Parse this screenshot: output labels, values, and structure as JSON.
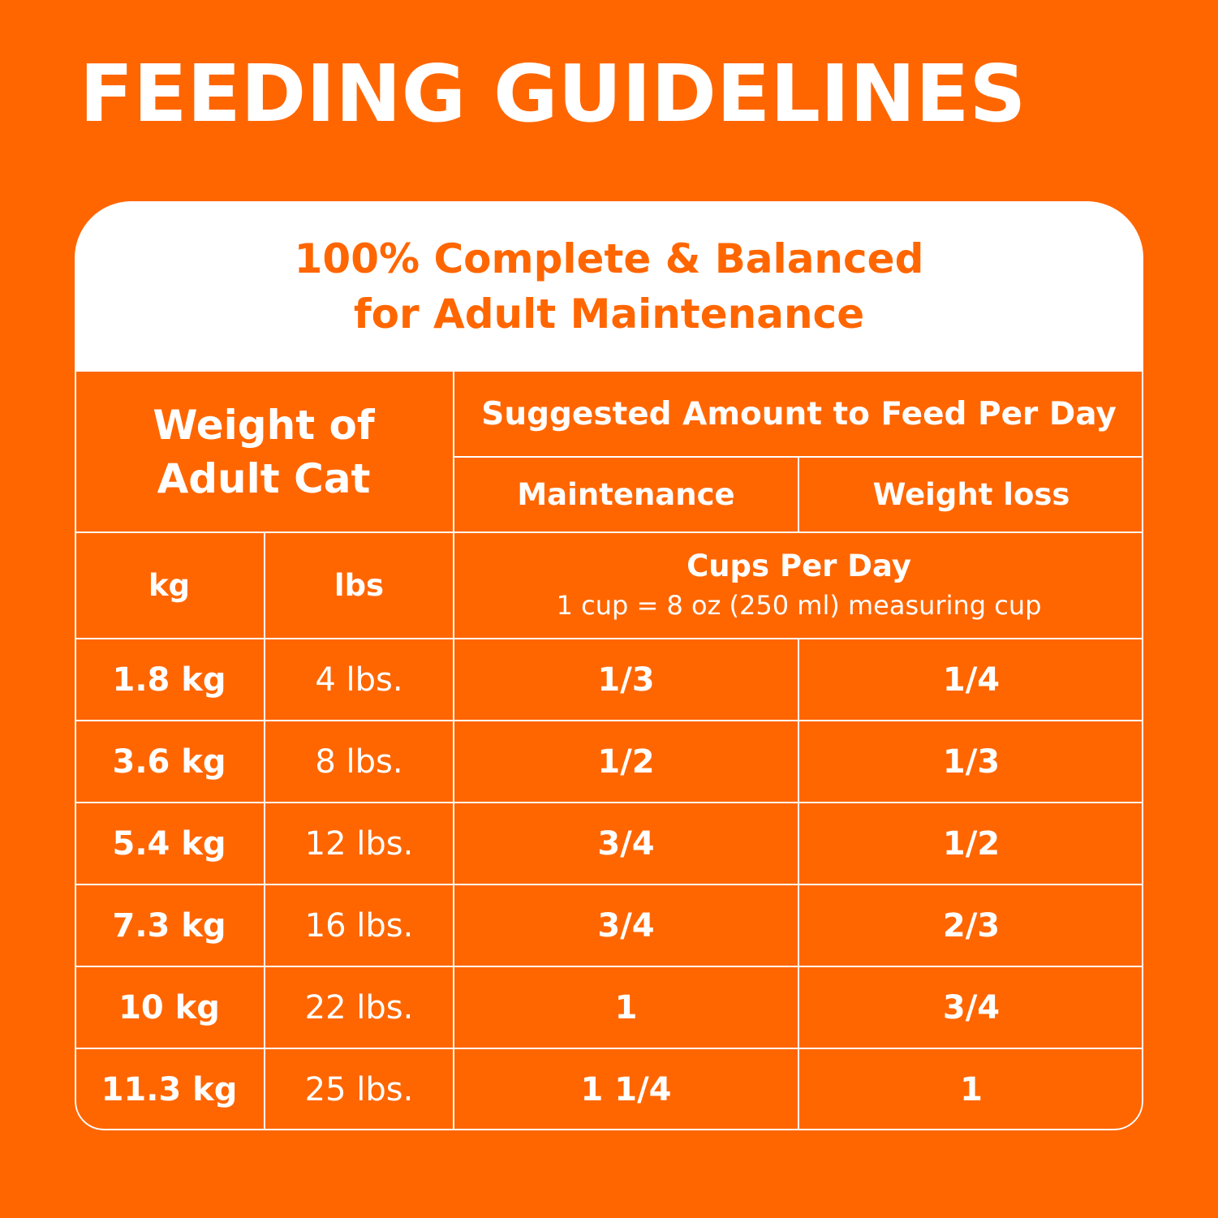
{
  "title": "FEEDING GUIDELINES",
  "card": {
    "header_line1": "100% Complete & Balanced",
    "header_line2": "for Adult Maintenance"
  },
  "table": {
    "weight_header_line1": "Weight of",
    "weight_header_line2": "Adult Cat",
    "suggested_header": "Suggested Amount to Feed Per Day",
    "maintenance_header": "Maintenance",
    "weight_loss_header": "Weight loss",
    "kg_header": "kg",
    "lbs_header": "lbs",
    "cups_header": "Cups Per Day",
    "cups_note": "1 cup = 8 oz (250 ml) measuring cup",
    "rows": [
      {
        "kg": "1.8 kg",
        "lbs": "4 lbs.",
        "maintenance": "1/3",
        "weight_loss": "1/4"
      },
      {
        "kg": "3.6 kg",
        "lbs": "8 lbs.",
        "maintenance": "1/2",
        "weight_loss": "1/3"
      },
      {
        "kg": "5.4 kg",
        "lbs": "12 lbs.",
        "maintenance": "3/4",
        "weight_loss": "1/2"
      },
      {
        "kg": "7.3 kg",
        "lbs": "16 lbs.",
        "maintenance": "3/4",
        "weight_loss": "2/3"
      },
      {
        "kg": "10 kg",
        "lbs": "22 lbs.",
        "maintenance": "1",
        "weight_loss": "3/4"
      },
      {
        "kg": "11.3 kg",
        "lbs": "25 lbs.",
        "maintenance": "1 1/4",
        "weight_loss": "1"
      }
    ]
  },
  "colors": {
    "background": "#FF6600",
    "text": "#FFFFFF",
    "header_band": "#FFFFFF",
    "header_text": "#FF6600"
  }
}
